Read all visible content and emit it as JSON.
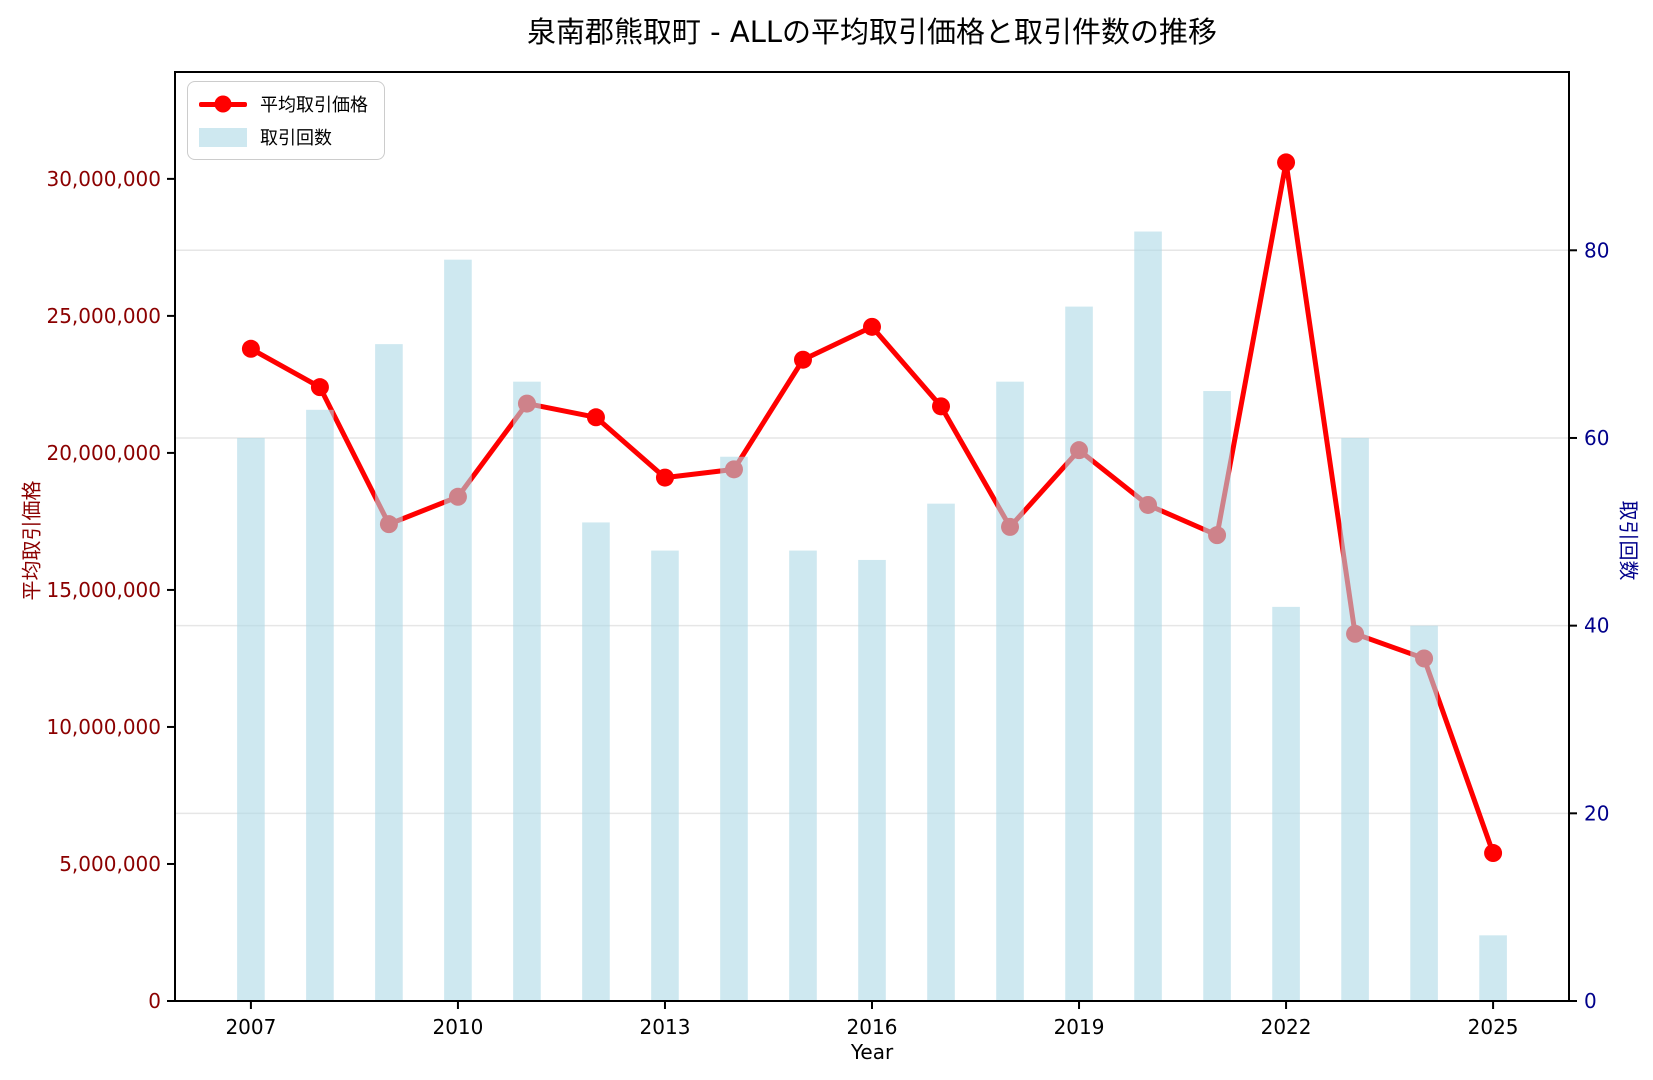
{
  "figure": {
    "title": "泉南郡熊取町 - ALLの平均取引価格と取引件数の推移"
  },
  "legend": {
    "position": "upper left",
    "items": [
      {
        "label": "平均取引価格",
        "type": "line-marker",
        "color": "#ff0000"
      },
      {
        "label": "取引回数",
        "type": "patch",
        "color": "#add8e6"
      }
    ]
  },
  "chart_data": {
    "type": "bar+line",
    "title": "泉南郡熊取町 - ALLの平均取引価格と取引件数の推移",
    "xlabel": "Year",
    "ylabel_left": "平均取引価格",
    "ylabel_right": "取引回数",
    "x": [
      2007,
      2008,
      2009,
      2010,
      2011,
      2012,
      2013,
      2014,
      2015,
      2016,
      2017,
      2018,
      2019,
      2020,
      2021,
      2022,
      2023,
      2024,
      2025
    ],
    "series": [
      {
        "name": "平均取引価格",
        "type": "line",
        "axis": "left",
        "color": "#ff0000",
        "values": [
          23800000,
          22400000,
          17400000,
          18400000,
          21800000,
          21300000,
          19100000,
          19400000,
          23400000,
          24600000,
          21700000,
          17300000,
          20100000,
          18100000,
          17000000,
          30600000,
          13400000,
          12500000,
          5400000
        ]
      },
      {
        "name": "取引回数",
        "type": "bar",
        "axis": "right",
        "color": "#add8e6",
        "opacity": 0.6,
        "bar_width_years": 0.4,
        "values": [
          60,
          63,
          70,
          79,
          66,
          51,
          48,
          58,
          48,
          47,
          53,
          66,
          74,
          82,
          65,
          42,
          60,
          40,
          7
        ]
      }
    ],
    "xlim": [
      2005.9,
      2026.1
    ],
    "ylim_left": [
      0,
      33900000
    ],
    "ylim_right": [
      0,
      99
    ],
    "xticks": [
      2007,
      2010,
      2013,
      2016,
      2019,
      2022,
      2025
    ],
    "yticks_left": [
      0,
      5000000,
      10000000,
      15000000,
      20000000,
      25000000,
      30000000
    ],
    "yticks_right": [
      0,
      20,
      40,
      60,
      80
    ],
    "grid": "horizontal gridlines at right-axis ticks",
    "colors": {
      "line": "#ff0000",
      "bar": "#add8e6",
      "left_axis_text": "#8b0000",
      "right_axis_text": "#00008b",
      "grid": "#e6e6e6",
      "spine": "#000000"
    }
  }
}
